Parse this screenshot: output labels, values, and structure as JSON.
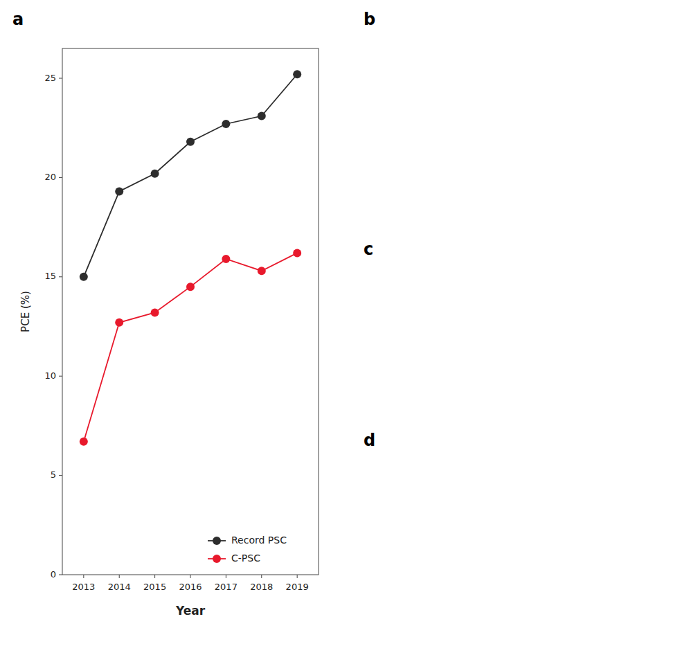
{
  "chart_data": {
    "type": "line",
    "xlabel": "Year",
    "ylabel": "PCE (%)",
    "x": [
      2013,
      2014,
      2015,
      2016,
      2017,
      2018,
      2019
    ],
    "xlim": [
      2012.4,
      2019.6
    ],
    "xticks": [
      2013,
      2014,
      2015,
      2016,
      2017,
      2018,
      2019
    ],
    "ylim": [
      0,
      26.5
    ],
    "yticks": [
      0,
      5,
      10,
      15,
      20,
      25
    ],
    "grid": false,
    "legend": "lower right",
    "series": [
      {
        "name": "Record PSC",
        "color": "#2d2d2d",
        "marker": "circle",
        "line_style": "solid",
        "values": [
          15.0,
          19.3,
          20.2,
          21.8,
          22.7,
          23.1,
          25.2
        ]
      },
      {
        "name": "C-PSC",
        "color": "#e8192c",
        "marker": "circle",
        "line_style": "solid",
        "values": [
          6.7,
          12.7,
          13.2,
          14.5,
          15.9,
          15.3,
          16.2
        ]
      }
    ],
    "annotations": [
      "a",
      "b",
      "c",
      "d"
    ]
  }
}
